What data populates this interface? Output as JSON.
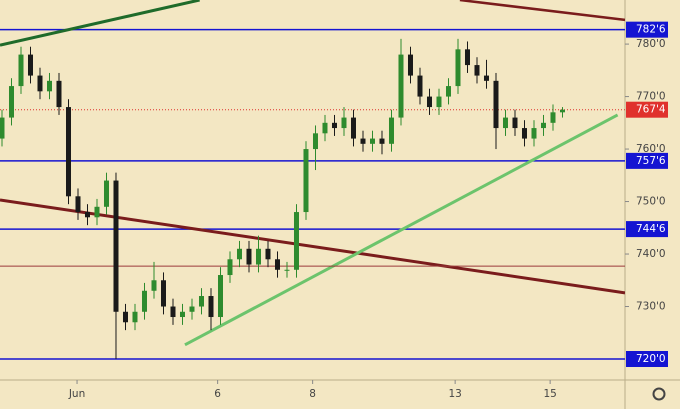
{
  "chart_data": {
    "type": "candlestick",
    "open": [
      762,
      766,
      772,
      778,
      774,
      771,
      773,
      768,
      751,
      748,
      747,
      749,
      754,
      729,
      727,
      729,
      733,
      735,
      730,
      728,
      729,
      730,
      732,
      728,
      736,
      739,
      741,
      738,
      741,
      739,
      737,
      737,
      748,
      760,
      763,
      765,
      764,
      766,
      762,
      761,
      762,
      761,
      766,
      778,
      774,
      770,
      768,
      770,
      772,
      779,
      776,
      774,
      773,
      764,
      766,
      764,
      762,
      764,
      765,
      767
    ],
    "high": [
      767.5,
      773.5,
      779.5,
      779.5,
      775.5,
      774.5,
      774.5,
      769.5,
      752.5,
      749.5,
      750.5,
      755.5,
      755.5,
      730.5,
      730.5,
      734.5,
      738.5,
      736.5,
      731.5,
      730.5,
      731.5,
      733.5,
      733.5,
      737.5,
      740.5,
      742.5,
      742.5,
      743.5,
      742.5,
      740.5,
      738.5,
      749.5,
      761.5,
      764.5,
      766.5,
      766.5,
      768,
      767.5,
      763.5,
      763.5,
      763.5,
      767.5,
      781,
      779.5,
      775.5,
      771.5,
      771.5,
      773.5,
      781,
      780.5,
      777.5,
      777,
      774.5,
      767.5,
      767.5,
      765.5,
      765.5,
      766.5,
      768.5,
      768
    ],
    "low": [
      760.5,
      764.5,
      770.5,
      772.5,
      769.5,
      769.5,
      766.5,
      749.5,
      746.5,
      745.5,
      745.5,
      747.5,
      720,
      725.5,
      725.5,
      727.5,
      731.5,
      728.5,
      726.5,
      726.5,
      727.5,
      728.5,
      725.5,
      726.5,
      734.5,
      737.5,
      736.5,
      736.5,
      737.5,
      735.5,
      735.5,
      735.5,
      746.5,
      756,
      761.5,
      762.5,
      762.5,
      760.5,
      759.5,
      759.5,
      759,
      759.5,
      764.5,
      772.5,
      768.5,
      766.5,
      766.5,
      768.5,
      770.5,
      774.5,
      772.5,
      771.5,
      760,
      762.5,
      762.5,
      760.5,
      760.5,
      762.5,
      763.5,
      766
    ],
    "close": [
      766,
      772,
      778,
      774,
      771,
      773,
      768,
      751,
      748,
      747,
      749,
      754,
      729,
      727,
      729,
      733,
      735,
      730,
      728,
      729,
      730,
      732,
      728,
      736,
      739,
      741,
      738,
      741,
      739,
      737,
      737,
      748,
      760,
      763,
      765,
      764,
      766,
      762,
      761,
      762,
      761,
      766,
      778,
      774,
      770,
      768,
      770,
      772,
      779,
      776,
      774,
      773,
      764,
      766,
      764,
      762,
      764,
      765,
      767,
      767.5
    ],
    "up_color": "#2e8b2e",
    "down_color": "#1a1a1a",
    "xlim": [
      -0.21,
      65.58
    ],
    "xticks": [
      {
        "value": 7.9,
        "label": "Jun"
      },
      {
        "value": 22.7,
        "label": "6"
      },
      {
        "value": 32.7,
        "label": "8"
      },
      {
        "value": 47.7,
        "label": "13"
      },
      {
        "value": 57.7,
        "label": "15"
      }
    ],
    "ylim": [
      716,
      788.4
    ],
    "yticks": [
      {
        "value": 730,
        "label": "730'0"
      },
      {
        "value": 740,
        "label": "740'0"
      },
      {
        "value": 750,
        "label": "750'0"
      },
      {
        "value": 760,
        "label": "760'0"
      },
      {
        "value": 770,
        "label": "770'0"
      },
      {
        "value": 780,
        "label": "780'0"
      }
    ],
    "levels": [
      {
        "value": 782.75,
        "label": "782'6",
        "color": "#1414d2"
      },
      {
        "value": 757.75,
        "label": "757'6",
        "color": "#1414d2"
      },
      {
        "value": 744.75,
        "label": "744'6",
        "color": "#1414d2"
      },
      {
        "value": 720,
        "label": "720'0",
        "color": "#1414d2"
      }
    ],
    "current": {
      "value": 767.5,
      "label": "767'4",
      "color": "#e0312c"
    },
    "lines": [
      {
        "x": [
          -0.21,
          20.8
        ],
        "values": [
          779.8,
          788.4
        ],
        "color": "#1f6b2a",
        "width": 3
      },
      {
        "x": [
          48.2,
          65.58
        ],
        "values": [
          788.4,
          784.6
        ],
        "color": "#7a1c1c",
        "width": 2.5
      },
      {
        "x": [
          -0.21,
          65.58
        ],
        "values": [
          750.3,
          732.6
        ],
        "color": "#7a1c1c",
        "width": 3
      },
      {
        "x": [
          19.26,
          64.8
        ],
        "values": [
          722.7,
          766.5
        ],
        "color": "#6cc46c",
        "width": 3
      },
      {
        "x": [
          -0.21,
          65.58
        ],
        "values": [
          737.7,
          737.7
        ],
        "color": "#9b3a3a",
        "width": 1
      }
    ],
    "grid": false
  }
}
